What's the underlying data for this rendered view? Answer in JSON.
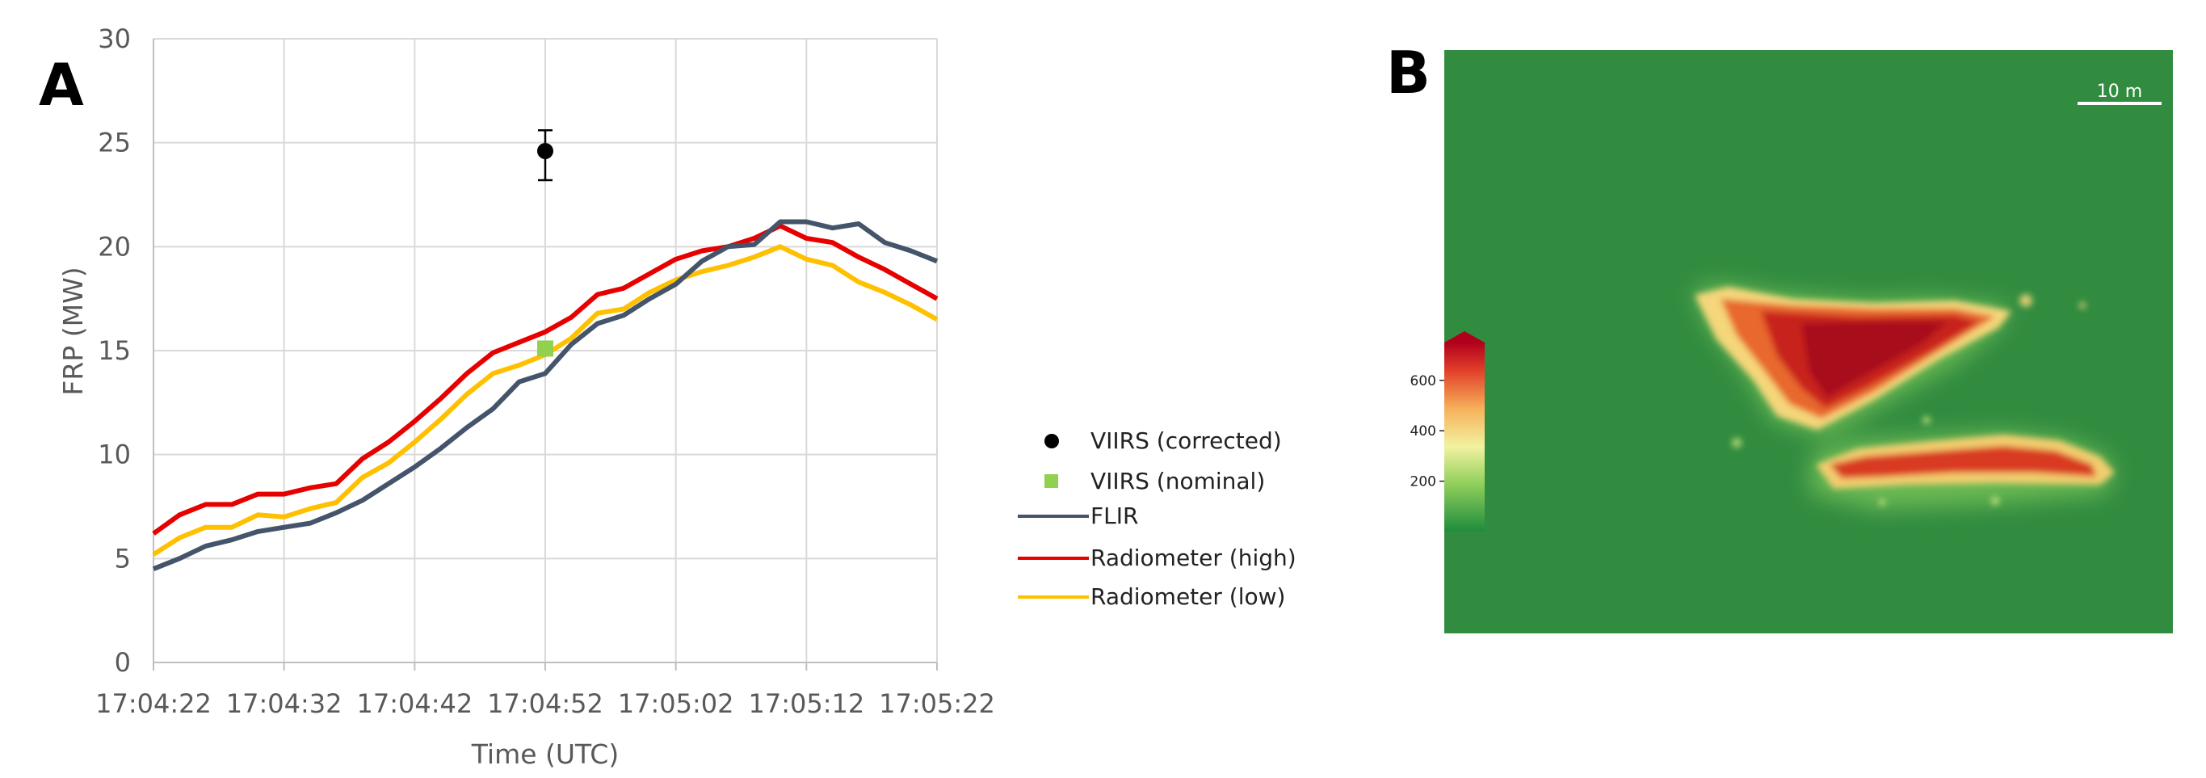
{
  "panel_a_label": "A",
  "panel_b_label": "B",
  "chart_data": {
    "type": "line",
    "xlabel": "Time (UTC)",
    "ylabel": "FRP (MW)",
    "ylim": [
      0,
      30
    ],
    "yticks": [
      0,
      5,
      10,
      15,
      20,
      25,
      30
    ],
    "xlim": [
      "17:04:22",
      "17:05:22"
    ],
    "xticks": [
      "17:04:22",
      "17:04:32",
      "17:04:42",
      "17:04:52",
      "17:05:02",
      "17:05:12",
      "17:05:22"
    ],
    "grid": true,
    "legend_position": "right",
    "series": [
      {
        "name": "FLIR",
        "kind": "line",
        "color": "#44546a",
        "points": [
          [
            "17:04:22",
            4.5
          ],
          [
            "17:04:24",
            5.0
          ],
          [
            "17:04:26",
            5.6
          ],
          [
            "17:04:28",
            5.9
          ],
          [
            "17:04:30",
            6.3
          ],
          [
            "17:04:32",
            6.5
          ],
          [
            "17:04:34",
            6.7
          ],
          [
            "17:04:36",
            7.2
          ],
          [
            "17:04:38",
            7.8
          ],
          [
            "17:04:40",
            8.6
          ],
          [
            "17:04:42",
            9.4
          ],
          [
            "17:04:44",
            10.3
          ],
          [
            "17:04:46",
            11.3
          ],
          [
            "17:04:48",
            12.2
          ],
          [
            "17:04:50",
            13.5
          ],
          [
            "17:04:52",
            13.9
          ],
          [
            "17:04:54",
            15.3
          ],
          [
            "17:04:56",
            16.3
          ],
          [
            "17:04:58",
            16.7
          ],
          [
            "17:05:00",
            17.5
          ],
          [
            "17:05:02",
            18.2
          ],
          [
            "17:05:04",
            19.3
          ],
          [
            "17:05:06",
            20.0
          ],
          [
            "17:05:08",
            20.1
          ],
          [
            "17:05:10",
            21.2
          ],
          [
            "17:05:12",
            21.2
          ],
          [
            "17:05:14",
            20.9
          ],
          [
            "17:05:16",
            21.1
          ],
          [
            "17:05:18",
            20.2
          ],
          [
            "17:05:20",
            19.8
          ],
          [
            "17:05:22",
            19.3
          ]
        ]
      },
      {
        "name": "Radiometer (high)",
        "kind": "line",
        "color": "#e60000",
        "points": [
          [
            "17:04:22",
            6.2
          ],
          [
            "17:04:24",
            7.1
          ],
          [
            "17:04:26",
            7.6
          ],
          [
            "17:04:28",
            7.6
          ],
          [
            "17:04:30",
            8.1
          ],
          [
            "17:04:32",
            8.1
          ],
          [
            "17:04:34",
            8.4
          ],
          [
            "17:04:36",
            8.6
          ],
          [
            "17:04:38",
            9.8
          ],
          [
            "17:04:40",
            10.6
          ],
          [
            "17:04:42",
            11.6
          ],
          [
            "17:04:44",
            12.7
          ],
          [
            "17:04:46",
            13.9
          ],
          [
            "17:04:48",
            14.9
          ],
          [
            "17:04:50",
            15.4
          ],
          [
            "17:04:52",
            15.9
          ],
          [
            "17:04:54",
            16.6
          ],
          [
            "17:04:56",
            17.7
          ],
          [
            "17:04:58",
            18.0
          ],
          [
            "17:05:00",
            18.7
          ],
          [
            "17:05:02",
            19.4
          ],
          [
            "17:05:04",
            19.8
          ],
          [
            "17:05:06",
            20.0
          ],
          [
            "17:05:08",
            20.4
          ],
          [
            "17:05:10",
            21.0
          ],
          [
            "17:05:12",
            20.4
          ],
          [
            "17:05:14",
            20.2
          ],
          [
            "17:05:16",
            19.5
          ],
          [
            "17:05:18",
            18.9
          ],
          [
            "17:05:20",
            18.2
          ],
          [
            "17:05:22",
            17.5
          ]
        ]
      },
      {
        "name": "Radiometer (low)",
        "kind": "line",
        "color": "#ffc000",
        "points": [
          [
            "17:04:22",
            5.2
          ],
          [
            "17:04:24",
            6.0
          ],
          [
            "17:04:26",
            6.5
          ],
          [
            "17:04:28",
            6.5
          ],
          [
            "17:04:30",
            7.1
          ],
          [
            "17:04:32",
            7.0
          ],
          [
            "17:04:34",
            7.4
          ],
          [
            "17:04:36",
            7.7
          ],
          [
            "17:04:38",
            8.9
          ],
          [
            "17:04:40",
            9.6
          ],
          [
            "17:04:42",
            10.6
          ],
          [
            "17:04:44",
            11.7
          ],
          [
            "17:04:46",
            12.9
          ],
          [
            "17:04:48",
            13.9
          ],
          [
            "17:04:50",
            14.3
          ],
          [
            "17:04:52",
            14.8
          ],
          [
            "17:04:54",
            15.6
          ],
          [
            "17:04:56",
            16.8
          ],
          [
            "17:04:58",
            17.0
          ],
          [
            "17:05:00",
            17.8
          ],
          [
            "17:05:02",
            18.4
          ],
          [
            "17:05:04",
            18.8
          ],
          [
            "17:05:06",
            19.1
          ],
          [
            "17:05:08",
            19.5
          ],
          [
            "17:05:10",
            20.0
          ],
          [
            "17:05:12",
            19.4
          ],
          [
            "17:05:14",
            19.1
          ],
          [
            "17:05:16",
            18.3
          ],
          [
            "17:05:18",
            17.8
          ],
          [
            "17:05:20",
            17.2
          ],
          [
            "17:05:22",
            16.5
          ]
        ]
      },
      {
        "name": "VIIRS (corrected)",
        "kind": "point",
        "color": "#000000",
        "points": [
          [
            "17:04:52",
            24.6
          ]
        ],
        "error": [
          23.2,
          25.6
        ]
      },
      {
        "name": "VIIRS (nominal)",
        "kind": "point",
        "color": "#92d050",
        "points": [
          [
            "17:04:52",
            15.1
          ]
        ]
      }
    ]
  },
  "legend": [
    {
      "label": "VIIRS (corrected)",
      "symbol": "dot",
      "color": "#000000"
    },
    {
      "label": "VIIRS (nominal)",
      "symbol": "square",
      "color": "#92d050"
    },
    {
      "label": "FLIR",
      "symbol": "line",
      "color": "#44546a"
    },
    {
      "label": "Radiometer (high)",
      "symbol": "line",
      "color": "#e60000"
    },
    {
      "label": "Radiometer (low)",
      "symbol": "line",
      "color": "#ffc000"
    }
  ],
  "map_panel": {
    "scale_label": "10 m",
    "colorbar_ticks": [
      "600",
      "400",
      "200"
    ],
    "colorbar_tick_values": [
      600,
      400,
      200
    ],
    "colorbar_range": [
      0,
      750
    ],
    "background_color": "#2f8a3e"
  }
}
